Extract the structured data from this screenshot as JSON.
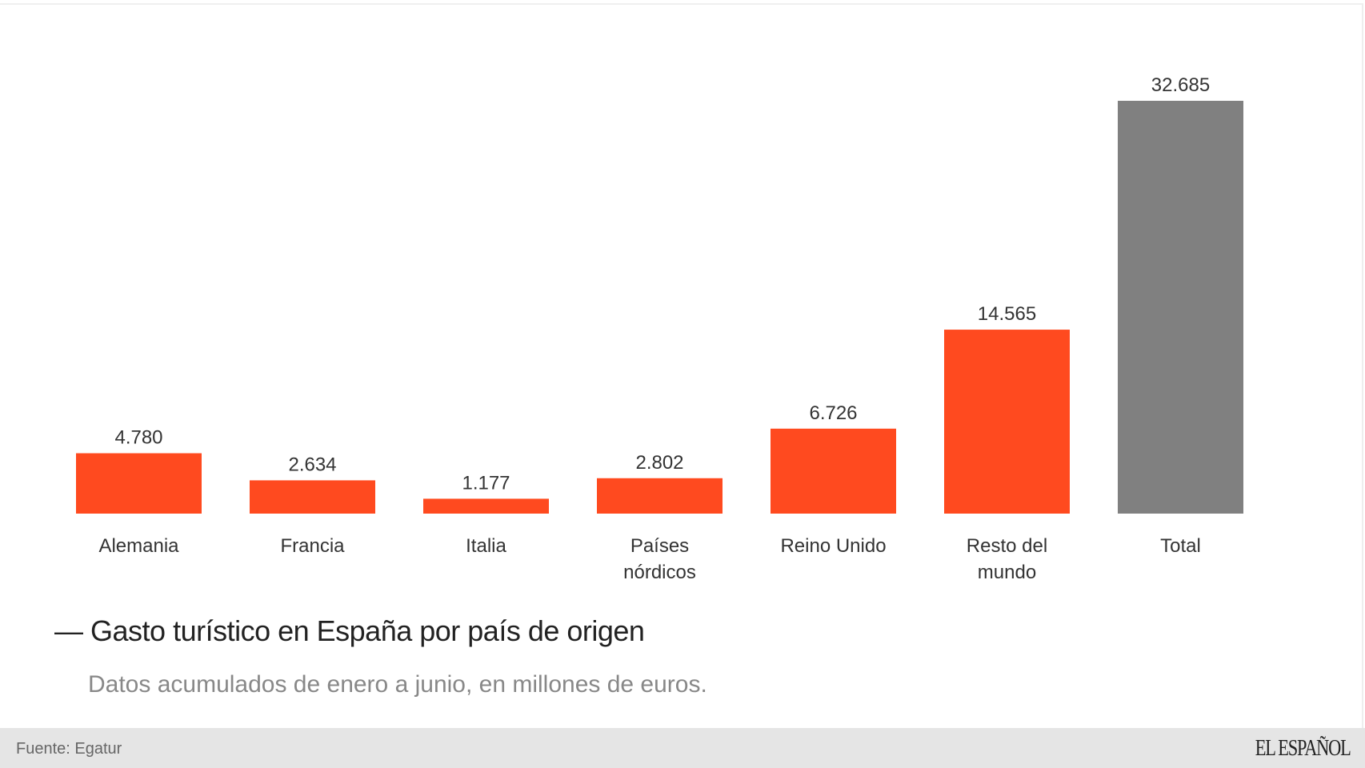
{
  "chart_data": {
    "type": "bar",
    "title": "Gasto turístico en España por país de origen",
    "subtitle": "Datos acumulados de enero a junio, en millones de euros.",
    "categories": [
      [
        "Alemania"
      ],
      [
        "Francia"
      ],
      [
        "Italia"
      ],
      [
        "Países",
        "nórdicos"
      ],
      [
        "Reino Unido"
      ],
      [
        "Resto del",
        "mundo"
      ],
      [
        "Total"
      ]
    ],
    "values": [
      4780,
      2634,
      1177,
      2802,
      6726,
      14565,
      32685
    ],
    "value_labels": [
      "4.780",
      "2.634",
      "1.177",
      "2.802",
      "6.726",
      "14.565",
      "32.685"
    ],
    "colors": [
      "#ff4a1f",
      "#ff4a1f",
      "#ff4a1f",
      "#ff4a1f",
      "#ff4a1f",
      "#ff4a1f",
      "#808080"
    ],
    "ylim": [
      0,
      32685
    ],
    "grid": false,
    "legend": "none"
  },
  "footer": {
    "source": "Fuente: Egatur",
    "logo": "EL ESPAÑOL"
  }
}
